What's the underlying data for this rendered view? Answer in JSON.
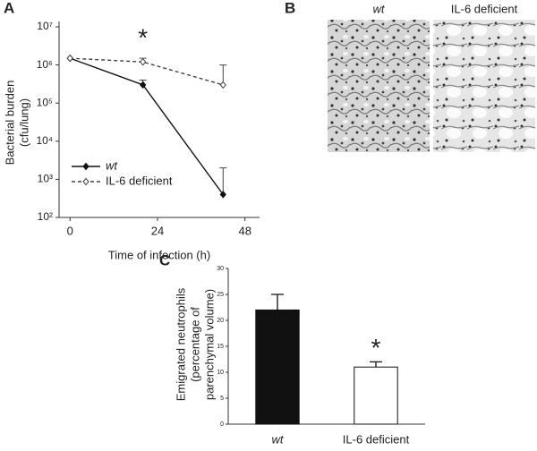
{
  "chart_data": [
    {
      "type": "line",
      "panel": "A",
      "ylabel": [
        "Bacterial burden",
        "(cfu/lung)"
      ],
      "xlabel": "Time of infection (h)",
      "x": [
        0,
        20,
        42
      ],
      "xlim": [
        -3,
        52
      ],
      "xticks": [
        0,
        24,
        48
      ],
      "ylim": [
        100,
        10000000
      ],
      "log_y": true,
      "yticks": [
        {
          "value": 100,
          "label": "10²"
        },
        {
          "value": 1000,
          "label": "10³"
        },
        {
          "value": 10000,
          "label": "10⁴"
        },
        {
          "value": 100000,
          "label": "10⁵"
        },
        {
          "value": 1000000,
          "label": "10⁶"
        },
        {
          "value": 10000000,
          "label": "10⁷"
        }
      ],
      "series": [
        {
          "name": "wt",
          "color": "#111111",
          "line_style": "solid",
          "marker": "filled",
          "values": [
            1500000,
            300000,
            400
          ],
          "errors": [
            0,
            100000,
            1600
          ]
        },
        {
          "name": "IL-6 deficient",
          "color": "#444444",
          "line_style": "dashed",
          "marker": "open",
          "values": [
            1500000,
            1200000,
            300000
          ],
          "errors": [
            0,
            300000,
            700000
          ]
        }
      ],
      "legend": "lower left",
      "annotations": [
        {
          "text": "*",
          "x": 20
        }
      ]
    },
    {
      "type": "image",
      "panel": "B",
      "labels": [
        "wt",
        "IL-6 deficient"
      ]
    },
    {
      "type": "bar",
      "panel": "C",
      "ylabel": [
        "Emigrated neutrophils",
        "(percentage of",
        "parenchymal volume)"
      ],
      "categories": [
        "wt",
        "IL-6 deficient"
      ],
      "values": [
        22,
        11
      ],
      "errors": [
        3,
        1
      ],
      "colors": [
        "#111111",
        "#ffffff"
      ],
      "ylim": [
        0,
        30
      ],
      "yticks": [
        0,
        5,
        10,
        15,
        20,
        25,
        30
      ],
      "annotations": [
        {
          "text": "*",
          "category": 1
        }
      ]
    }
  ]
}
